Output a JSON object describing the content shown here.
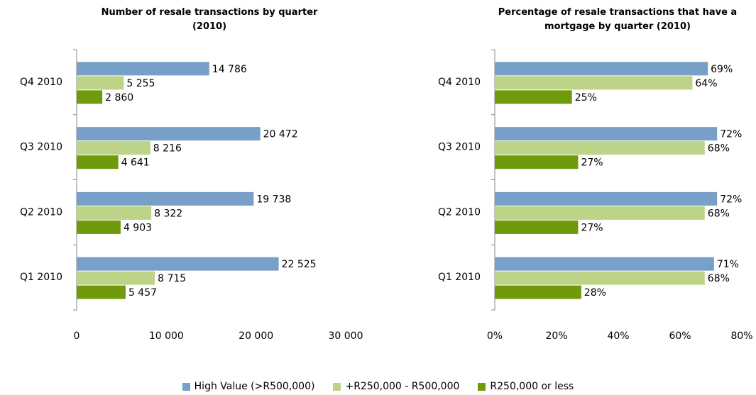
{
  "chart_data": [
    {
      "type": "hbar",
      "title": "Number of resale transactions by quarter (2010)",
      "categories": [
        "Q1 2010",
        "Q2 2010",
        "Q3 2010",
        "Q4 2010"
      ],
      "series": [
        {
          "name": "High Value (>R500,000)",
          "color": "#789fc7",
          "values": [
            22525,
            19738,
            20472,
            14786
          ],
          "value_labels": [
            "22 525",
            "19 738",
            "20 472",
            "14 786"
          ]
        },
        {
          "name": "+R250,000 - R500,000",
          "color": "#bdd388",
          "values": [
            8715,
            8322,
            8216,
            5255
          ],
          "value_labels": [
            "8 715",
            "8 322",
            "8 216",
            "5 255"
          ]
        },
        {
          "name": "R250,000 or less",
          "color": "#6e9a0c",
          "values": [
            5457,
            4903,
            4641,
            2860
          ],
          "value_labels": [
            "5 457",
            "4 903",
            "4 641",
            "2 860"
          ]
        }
      ],
      "xlim": [
        0,
        30000
      ],
      "xticks": [
        0,
        {
          "value": 10000,
          "label": "10 000"
        },
        {
          "value": 20000,
          "label": "20 000"
        },
        {
          "value": 30000,
          "label": "30 000"
        }
      ]
    },
    {
      "type": "hbar",
      "title": "Percentage of resale transactions that have a mortgage by quarter (2010)",
      "categories": [
        "Q1 2010",
        "Q2 2010",
        "Q3 2010",
        "Q4 2010"
      ],
      "series": [
        {
          "color": "#789fc7",
          "values": [
            71,
            72,
            72,
            69
          ],
          "value_labels": [
            "71%",
            "72%",
            "72%",
            "69%"
          ]
        },
        {
          "color": "#bdd388",
          "values": [
            68,
            68,
            68,
            64
          ],
          "value_labels": [
            "68%",
            "68%",
            "68%",
            "64%"
          ]
        },
        {
          "color": "#6e9a0c",
          "values": [
            28,
            27,
            27,
            25
          ],
          "value_labels": [
            "28%",
            "27%",
            "27%",
            "25%"
          ]
        }
      ],
      "xlim": [
        0,
        80
      ],
      "xticks": [
        {
          "value": 0,
          "label": "0%"
        },
        {
          "value": 20,
          "label": "20%"
        },
        {
          "value": 40,
          "label": "40%"
        },
        {
          "value": 60,
          "label": "60%"
        },
        {
          "value": 80,
          "label": "80%"
        }
      ]
    }
  ]
}
